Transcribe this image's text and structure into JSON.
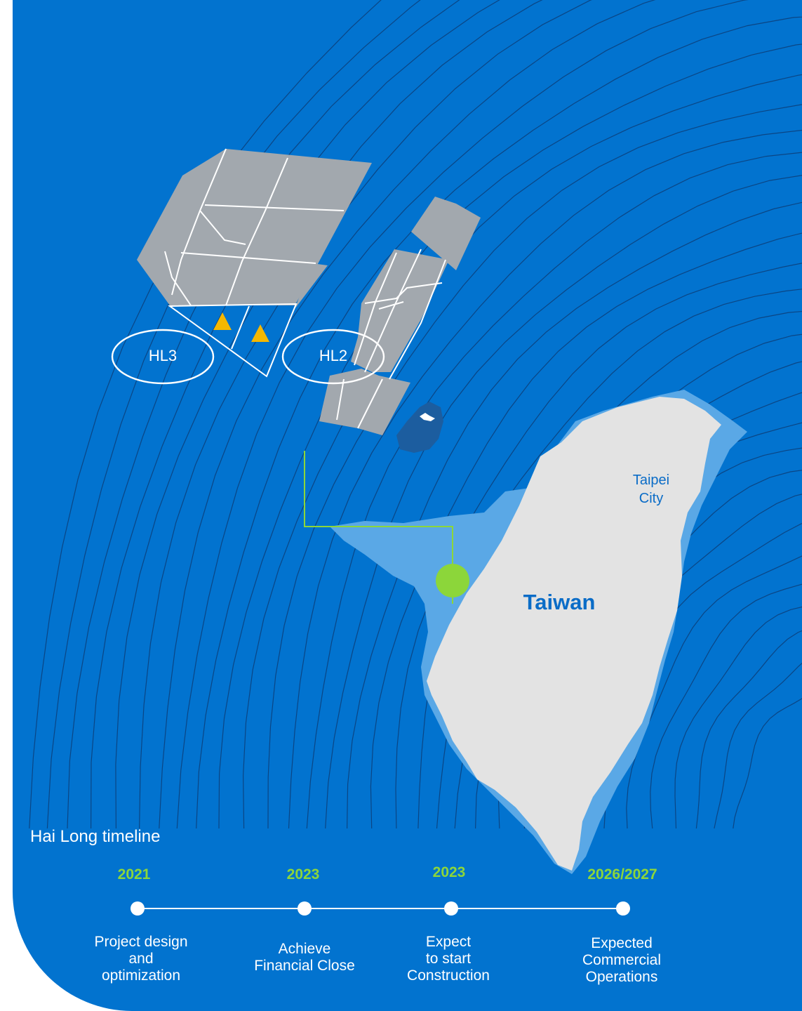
{
  "map": {
    "zones": [
      {
        "id": "HL3",
        "label": "HL3"
      },
      {
        "id": "HL2",
        "label": "HL2"
      }
    ],
    "city": {
      "label": "Taipei\nCity"
    },
    "island": {
      "label": "Taiwan"
    },
    "colors": {
      "sea": "#0273cf",
      "contour": "#0d3e78",
      "shallow_water": "#5aa8e6",
      "land": "#e3e3e3",
      "wind_areas": "#a2a8ae",
      "turbine_marker": "#f5b800",
      "cable": "#8cd63a",
      "landing_point": "#8cd63a",
      "text_on_land": "#0a6cc7"
    },
    "icons": {
      "turbine": "triangle-icon",
      "landing_point": "circle-marker-icon"
    }
  },
  "timeline": {
    "title": "Hai Long timeline",
    "milestones": [
      {
        "year": "2021",
        "label": "Project design\nand\noptimization"
      },
      {
        "year": "2023",
        "label": "Achieve\nFinancial Close"
      },
      {
        "year": "2023",
        "label": "Expect\nto start\nConstruction"
      },
      {
        "year": "2026/2027",
        "label": "Expected\nCommercial\nOperations"
      }
    ]
  }
}
